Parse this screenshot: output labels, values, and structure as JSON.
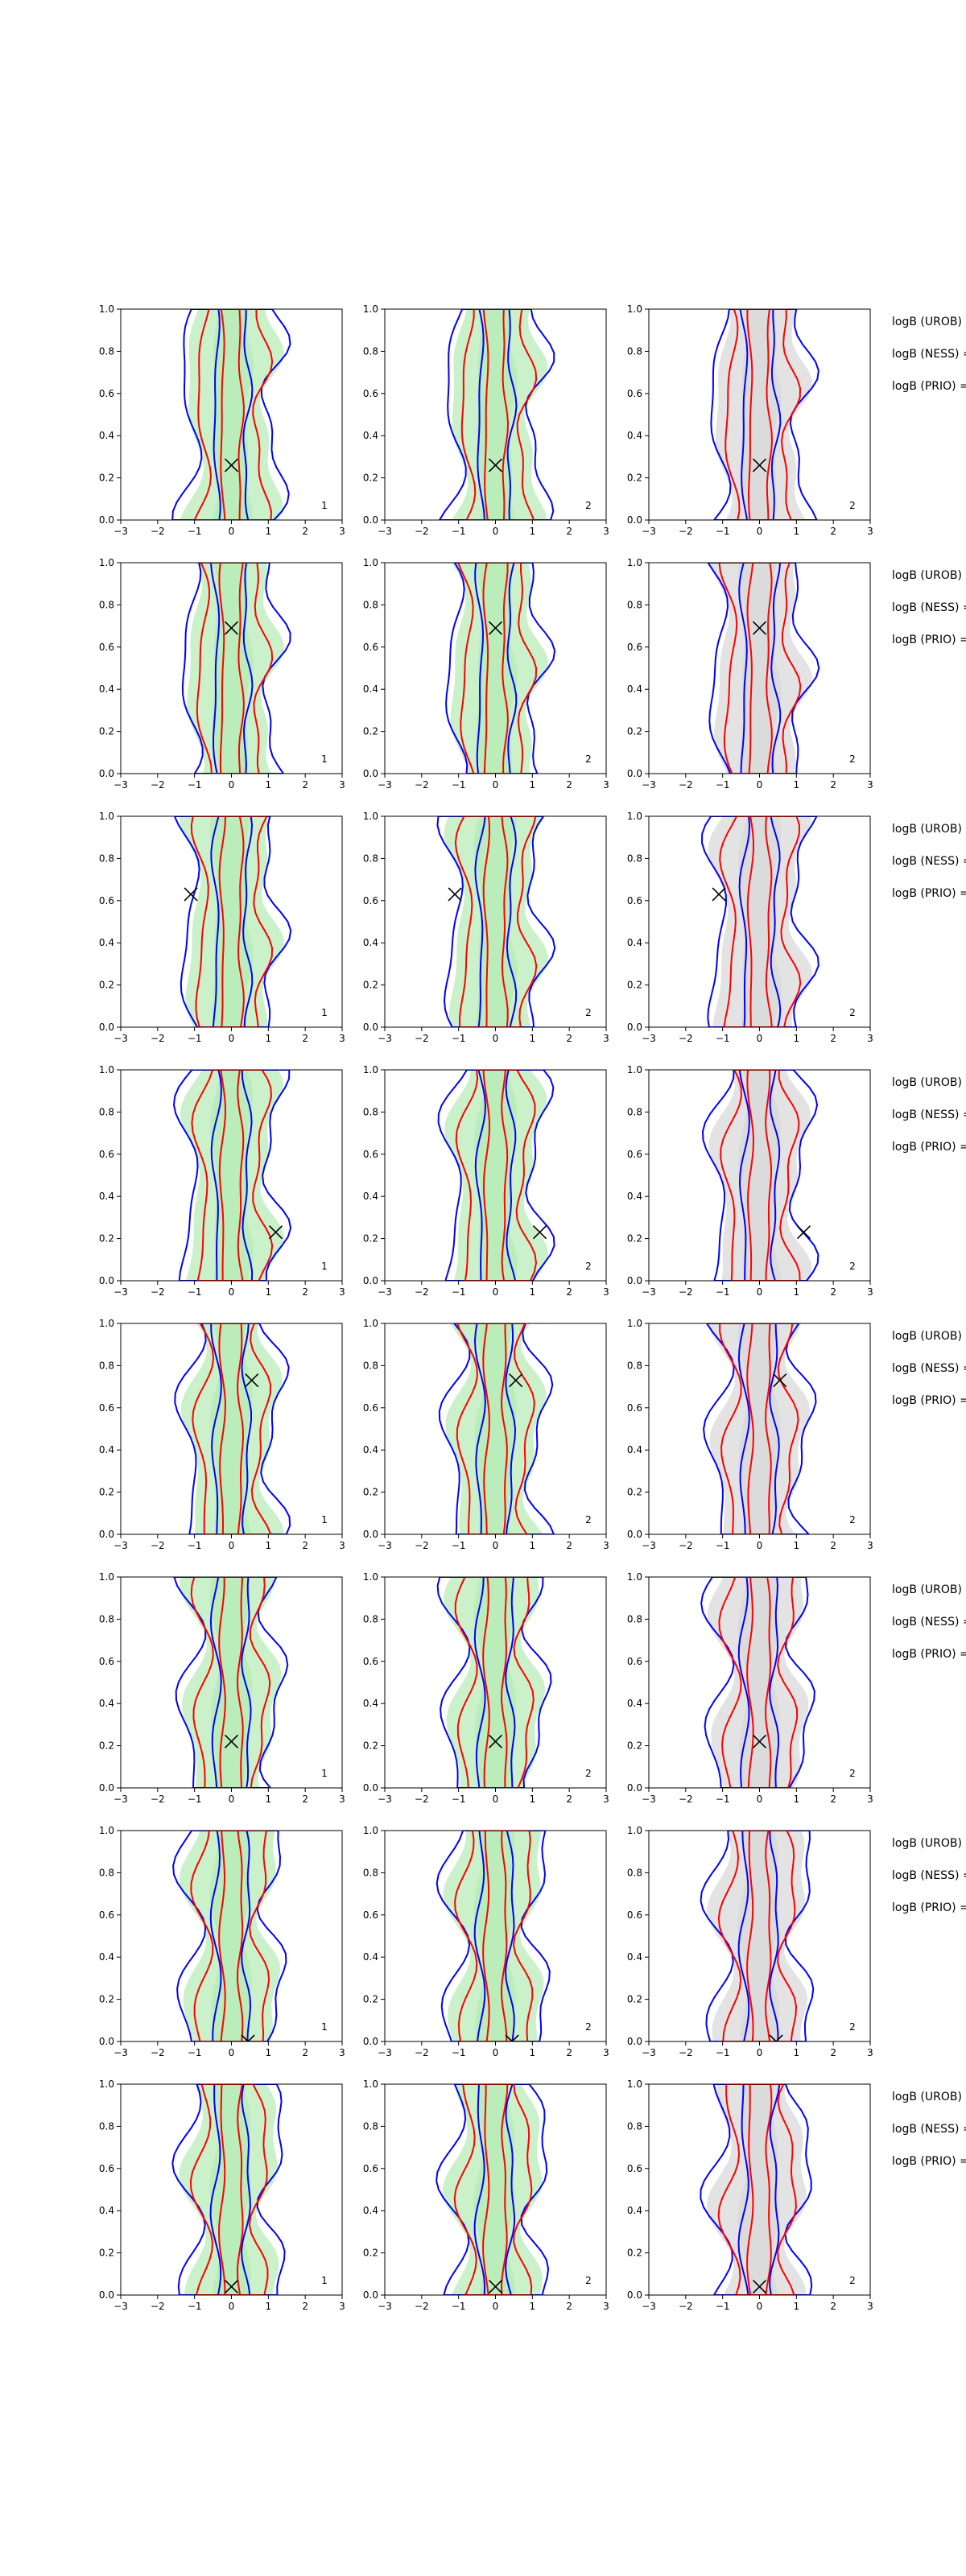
{
  "figure": {
    "description_labels_per_row": [
      "logB (UROB) =",
      "logB (NESS) =",
      "logB (PRIO) ="
    ],
    "fill_colors": {
      "green": "#b8ecb8",
      "gray": "#d9d9d9"
    },
    "line_colors": {
      "blue": "#0000ff",
      "red": "#ff0000",
      "marker": "#000000"
    }
  },
  "chart_data": {
    "type": "contour-grid",
    "rows": 8,
    "cols": 3,
    "xlim": [
      -3,
      3
    ],
    "ylim": [
      0.0,
      1.0
    ],
    "xticks": [
      "−3",
      "−2",
      "−1",
      "0",
      "1",
      "2",
      "3"
    ],
    "yticks": [
      "0.0",
      "0.2",
      "0.4",
      "0.6",
      "0.8",
      "1.0"
    ],
    "row_labels": [
      "logB (UROB) =",
      "logB (NESS) =",
      "logB (PRIO) ="
    ],
    "panel_corner_labels": [
      "1",
      "2",
      "2"
    ],
    "fill_per_column": [
      "green",
      "green",
      "gray"
    ],
    "panels": [
      {
        "row": 0,
        "markers": [
          [
            0.0,
            0.26
          ]
        ]
      },
      {
        "row": 1,
        "markers": [
          [
            0.0,
            0.69
          ]
        ]
      },
      {
        "row": 2,
        "markers": [
          [
            -1.1,
            0.63
          ]
        ]
      },
      {
        "row": 3,
        "markers": [
          [
            1.2,
            0.23
          ]
        ]
      },
      {
        "row": 4,
        "markers": [
          [
            0.55,
            0.73
          ]
        ]
      },
      {
        "row": 5,
        "markers": [
          [
            0.0,
            0.22
          ]
        ]
      },
      {
        "row": 6,
        "markers": [
          [
            0.45,
            0.0
          ]
        ]
      },
      {
        "row": 7,
        "markers": [
          [
            0.0,
            0.04
          ]
        ]
      }
    ],
    "series": [
      {
        "name": "",
        "color": "blue",
        "kind": "outer contour"
      },
      {
        "name": "",
        "color": "red",
        "kind": "inner contour"
      }
    ]
  }
}
